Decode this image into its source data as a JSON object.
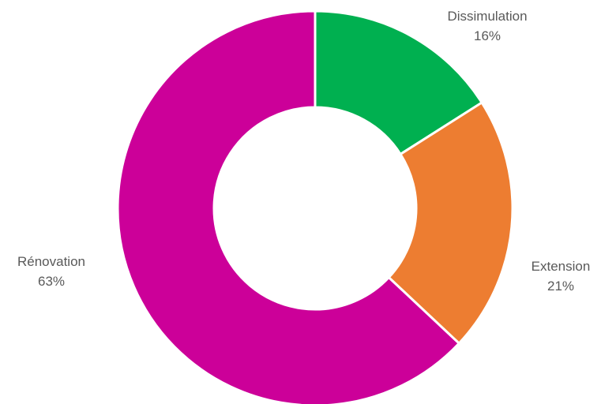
{
  "chart_data": {
    "type": "pie",
    "variant": "donut",
    "title": "",
    "slices": [
      {
        "label": "Dissimulation",
        "value": 16,
        "display": "16%",
        "color": "#00b050"
      },
      {
        "label": "Extension",
        "value": 21,
        "display": "21%",
        "color": "#ed7d31"
      },
      {
        "label": "Rénovation",
        "value": 63,
        "display": "63%",
        "color": "#cc0099"
      }
    ],
    "legend": "none",
    "data_labels": "outside"
  }
}
